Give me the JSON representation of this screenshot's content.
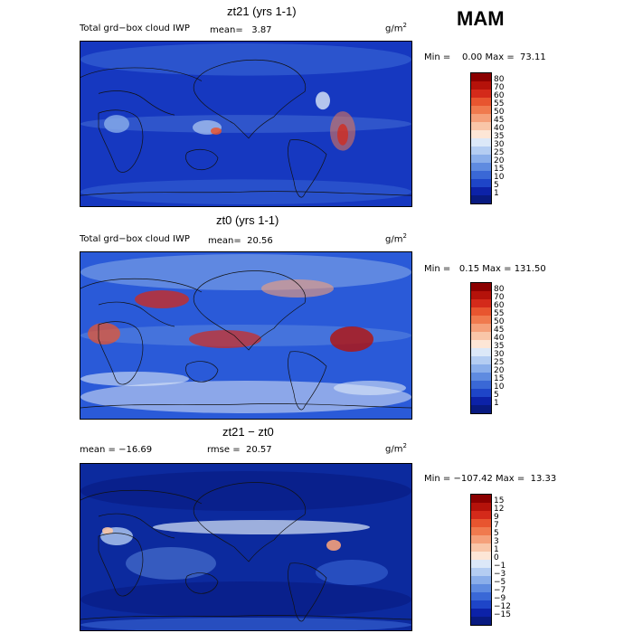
{
  "season": "MAM",
  "panels": [
    {
      "title": "zt21 (yrs 1-1)",
      "left_label": "Total grd−box cloud IWP",
      "mean_label": "mean=   3.87",
      "unit_base": "g/m",
      "unit_exp": "2",
      "minmax": "Min =    0.00 Max =  73.11",
      "cbar_ticks": [
        "80",
        "70",
        "60",
        "55",
        "50",
        "45",
        "40",
        "35",
        "30",
        "25",
        "20",
        "15",
        "10",
        "5",
        "1"
      ],
      "style": "low"
    },
    {
      "title": "zt0 (yrs 1-1)",
      "left_label": "Total grd−box cloud IWP",
      "mean_label": "mean=  20.56",
      "unit_base": "g/m",
      "unit_exp": "2",
      "minmax": "Min =   0.15 Max = 131.50",
      "cbar_ticks": [
        "80",
        "70",
        "60",
        "55",
        "50",
        "45",
        "40",
        "35",
        "30",
        "25",
        "20",
        "15",
        "10",
        "5",
        "1"
      ],
      "style": "high"
    },
    {
      "title": "zt21 − zt0",
      "left_label": "mean = −16.69",
      "mean_label": "rmse =  20.57",
      "unit_base": "g/m",
      "unit_exp": "2",
      "minmax": "Min = −107.42 Max =  13.33",
      "cbar_ticks": [
        "15",
        "12",
        "9",
        "7",
        "5",
        "3",
        "1",
        "0",
        "−1",
        "−3",
        "−5",
        "−7",
        "−9",
        "−12",
        "−15"
      ],
      "style": "diff"
    }
  ],
  "colors": {
    "cbar": [
      "#8b0000",
      "#b5120a",
      "#d42a1a",
      "#e8552f",
      "#f07a4e",
      "#f5a07a",
      "#f9c6a8",
      "#fde6d6",
      "#dce8f8",
      "#b4cdf2",
      "#8aaeea",
      "#5f8be0",
      "#3a68d6",
      "#1e45c8",
      "#0c22a8",
      "#081a80"
    ]
  }
}
